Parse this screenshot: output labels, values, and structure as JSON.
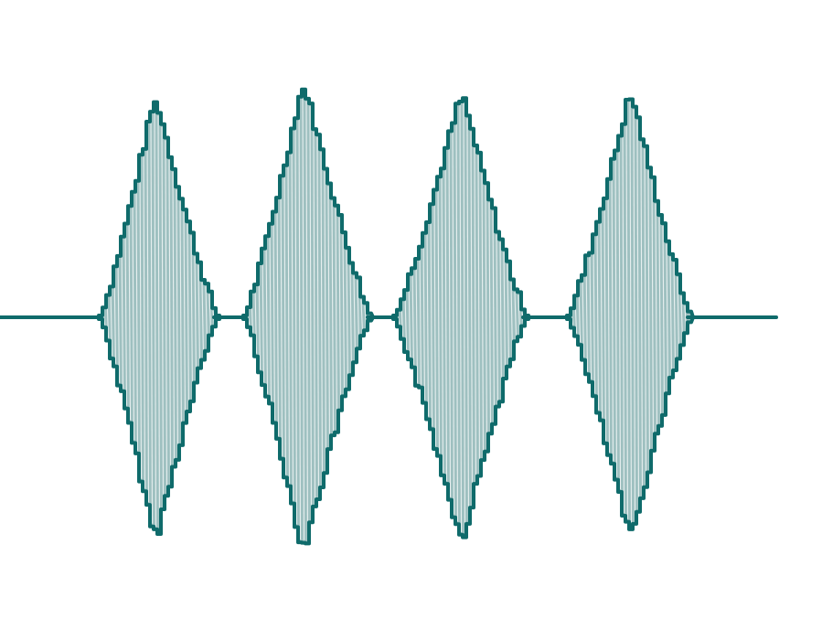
{
  "image": {
    "kind": "audio-waveform-illustration",
    "icon_name": "sound-wave-icon",
    "burst_count": 4,
    "colors": {
      "background": "#ffffff",
      "outline": "#0f6b6b",
      "fill": "#9ec0c0",
      "oscillation_lines": "#f4f8f8",
      "baseline": "#0f6b6b"
    }
  }
}
